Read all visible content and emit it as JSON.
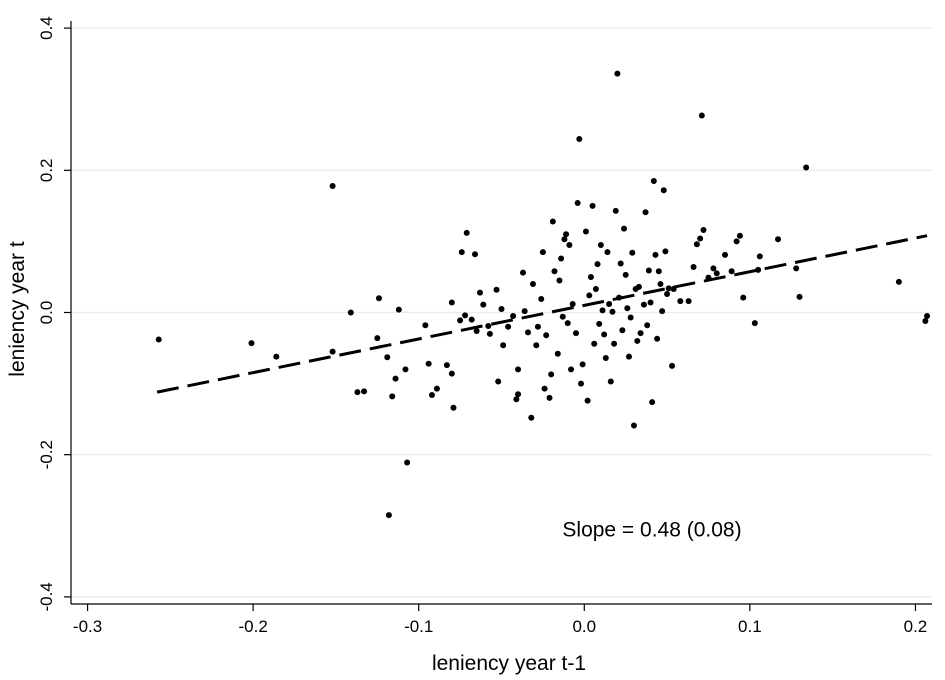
{
  "chart_data": {
    "type": "scatter",
    "title": "",
    "xlabel": "leniency year t-1",
    "ylabel": "leniency year t",
    "xlim": [
      -0.31,
      0.21
    ],
    "ylim": [
      -0.41,
      0.41
    ],
    "xticks": [
      -0.3,
      -0.2,
      -0.1,
      0.0,
      0.1,
      0.2
    ],
    "xtick_labels": [
      "-0.3",
      "-0.2",
      "-0.1",
      "0.0",
      "0.1",
      "0.2"
    ],
    "yticks": [
      -0.4,
      -0.2,
      0.0,
      0.2,
      0.4
    ],
    "ytick_labels": [
      "-0.4",
      "-0.2",
      "0.0",
      "0.2",
      "0.4"
    ],
    "grid": "horizontal",
    "legend": "none",
    "colors": {
      "points": "#000000",
      "fit_line": "#000000",
      "grid": "#e6eef0",
      "axis": "#000000"
    },
    "annotation": {
      "text": "Slope = 0.48 (0.08)",
      "x": 0.02,
      "y": -0.305
    },
    "fit_line": {
      "style": "dashed",
      "x": [
        -0.258,
        0.207
      ],
      "y": [
        -0.112,
        0.108
      ]
    },
    "series": [
      {
        "points": [
          [
            -0.257,
            -0.038
          ],
          [
            -0.201,
            -0.043
          ],
          [
            -0.186,
            -0.062
          ],
          [
            -0.152,
            0.178
          ],
          [
            -0.152,
            -0.055
          ],
          [
            -0.141,
            0.0
          ],
          [
            -0.137,
            -0.112
          ],
          [
            -0.133,
            -0.111
          ],
          [
            -0.124,
            0.02
          ],
          [
            -0.125,
            -0.036
          ],
          [
            -0.119,
            -0.063
          ],
          [
            -0.116,
            -0.118
          ],
          [
            -0.114,
            -0.093
          ],
          [
            -0.112,
            0.004
          ],
          [
            -0.108,
            -0.08
          ],
          [
            -0.107,
            -0.211
          ],
          [
            -0.118,
            -0.285
          ],
          [
            -0.096,
            -0.018
          ],
          [
            -0.094,
            -0.072
          ],
          [
            -0.092,
            -0.116
          ],
          [
            -0.089,
            -0.107
          ],
          [
            -0.083,
            -0.074
          ],
          [
            -0.08,
            0.014
          ],
          [
            -0.08,
            -0.086
          ],
          [
            -0.079,
            -0.134
          ],
          [
            -0.075,
            -0.011
          ],
          [
            -0.072,
            -0.004
          ],
          [
            -0.074,
            0.085
          ],
          [
            -0.071,
            0.112
          ],
          [
            -0.068,
            -0.01
          ],
          [
            -0.066,
            0.082
          ],
          [
            -0.065,
            -0.026
          ],
          [
            -0.063,
            0.028
          ],
          [
            -0.061,
            0.011
          ],
          [
            -0.058,
            -0.019
          ],
          [
            -0.057,
            -0.03
          ],
          [
            -0.053,
            0.032
          ],
          [
            -0.052,
            -0.097
          ],
          [
            -0.05,
            0.005
          ],
          [
            -0.049,
            -0.046
          ],
          [
            -0.046,
            -0.02
          ],
          [
            -0.043,
            -0.005
          ],
          [
            -0.041,
            -0.122
          ],
          [
            -0.04,
            -0.08
          ],
          [
            -0.04,
            -0.115
          ],
          [
            -0.037,
            0.056
          ],
          [
            -0.036,
            0.002
          ],
          [
            -0.034,
            -0.028
          ],
          [
            -0.032,
            -0.148
          ],
          [
            -0.031,
            0.04
          ],
          [
            -0.029,
            -0.046
          ],
          [
            -0.028,
            -0.02
          ],
          [
            -0.026,
            0.019
          ],
          [
            -0.025,
            0.085
          ],
          [
            -0.024,
            -0.107
          ],
          [
            -0.023,
            -0.032
          ],
          [
            -0.021,
            -0.12
          ],
          [
            -0.02,
            -0.087
          ],
          [
            -0.019,
            0.128
          ],
          [
            -0.018,
            0.058
          ],
          [
            -0.016,
            -0.058
          ],
          [
            -0.015,
            0.045
          ],
          [
            -0.014,
            0.076
          ],
          [
            -0.013,
            -0.006
          ],
          [
            -0.012,
            0.103
          ],
          [
            -0.011,
            0.11
          ],
          [
            -0.01,
            -0.015
          ],
          [
            -0.009,
            0.095
          ],
          [
            -0.008,
            -0.08
          ],
          [
            -0.007,
            0.012
          ],
          [
            -0.005,
            -0.029
          ],
          [
            -0.004,
            0.154
          ],
          [
            -0.003,
            0.244
          ],
          [
            -0.002,
            -0.1
          ],
          [
            -0.001,
            -0.073
          ],
          [
            0.001,
            0.114
          ],
          [
            0.002,
            -0.124
          ],
          [
            0.003,
            0.024
          ],
          [
            0.004,
            0.05
          ],
          [
            0.005,
            0.15
          ],
          [
            0.006,
            -0.044
          ],
          [
            0.007,
            0.033
          ],
          [
            0.008,
            0.068
          ],
          [
            0.009,
            -0.016
          ],
          [
            0.01,
            0.095
          ],
          [
            0.011,
            0.003
          ],
          [
            0.012,
            -0.031
          ],
          [
            0.013,
            -0.064
          ],
          [
            0.014,
            0.085
          ],
          [
            0.015,
            0.012
          ],
          [
            0.016,
            -0.097
          ],
          [
            0.017,
            0.001
          ],
          [
            0.018,
            -0.044
          ],
          [
            0.019,
            0.143
          ],
          [
            0.02,
            0.336
          ],
          [
            0.021,
            0.021
          ],
          [
            0.022,
            0.069
          ],
          [
            0.023,
            -0.025
          ],
          [
            0.024,
            0.118
          ],
          [
            0.025,
            0.053
          ],
          [
            0.026,
            0.006
          ],
          [
            0.027,
            -0.062
          ],
          [
            0.028,
            -0.007
          ],
          [
            0.029,
            0.084
          ],
          [
            0.03,
            -0.159
          ],
          [
            0.031,
            0.033
          ],
          [
            0.032,
            -0.04
          ],
          [
            0.033,
            0.036
          ],
          [
            0.034,
            -0.029
          ],
          [
            0.036,
            0.011
          ],
          [
            0.037,
            0.141
          ],
          [
            0.038,
            -0.018
          ],
          [
            0.039,
            0.059
          ],
          [
            0.04,
            0.014
          ],
          [
            0.041,
            -0.126
          ],
          [
            0.042,
            0.185
          ],
          [
            0.043,
            0.081
          ],
          [
            0.044,
            -0.037
          ],
          [
            0.045,
            0.058
          ],
          [
            0.046,
            0.04
          ],
          [
            0.047,
            0.002
          ],
          [
            0.048,
            0.172
          ],
          [
            0.049,
            0.086
          ],
          [
            0.05,
            0.026
          ],
          [
            0.051,
            0.034
          ],
          [
            0.053,
            -0.075
          ],
          [
            0.054,
            0.033
          ],
          [
            0.058,
            0.016
          ],
          [
            0.063,
            0.016
          ],
          [
            0.066,
            0.064
          ],
          [
            0.068,
            0.096
          ],
          [
            0.07,
            0.104
          ],
          [
            0.071,
            0.277
          ],
          [
            0.072,
            0.116
          ],
          [
            0.075,
            0.049
          ],
          [
            0.078,
            0.062
          ],
          [
            0.08,
            0.055
          ],
          [
            0.085,
            0.081
          ],
          [
            0.089,
            0.058
          ],
          [
            0.092,
            0.1
          ],
          [
            0.094,
            0.108
          ],
          [
            0.096,
            0.021
          ],
          [
            0.103,
            -0.015
          ],
          [
            0.105,
            0.06
          ],
          [
            0.106,
            0.079
          ],
          [
            0.117,
            0.103
          ],
          [
            0.128,
            0.062
          ],
          [
            0.13,
            0.022
          ],
          [
            0.134,
            0.204
          ],
          [
            0.19,
            0.043
          ],
          [
            0.206,
            -0.012
          ],
          [
            0.207,
            -0.005
          ]
        ]
      }
    ]
  }
}
